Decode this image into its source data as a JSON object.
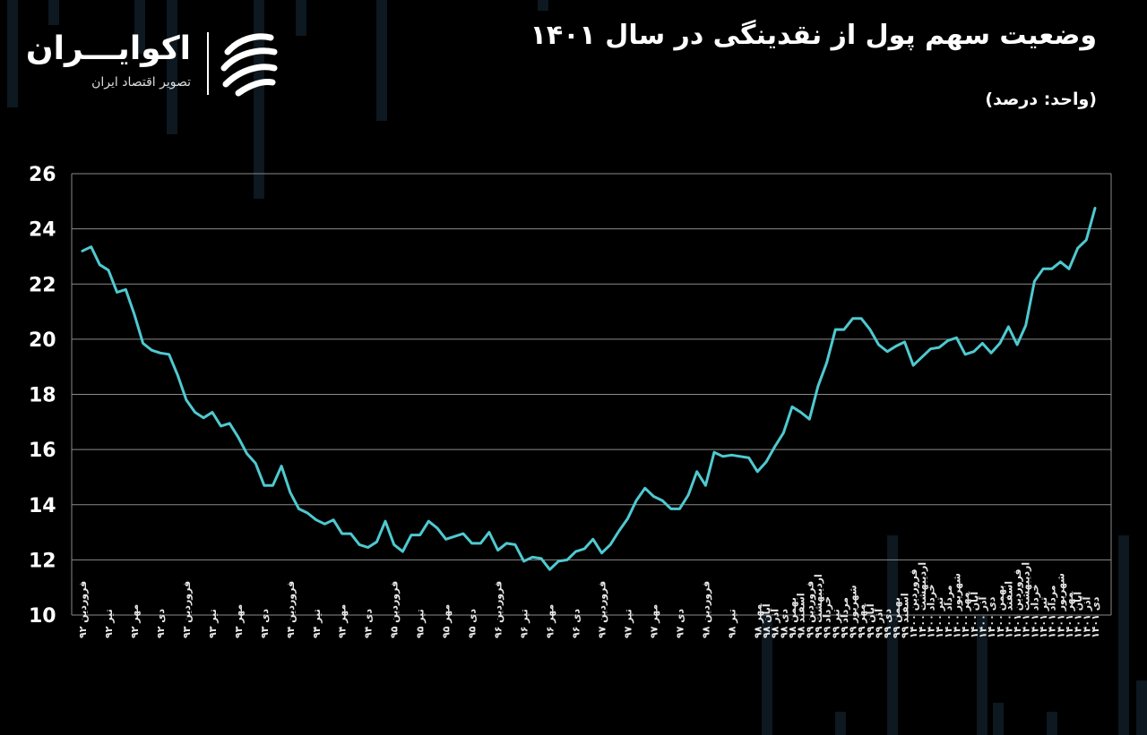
{
  "title": "وضعیت سهم پول از نقدینگی در سال ۱۴۰۱",
  "unit_label": "(واحد: درصد)",
  "brand": {
    "name": "اکوایـــران",
    "tagline": "تصویر اقتصاد ایران"
  },
  "colors": {
    "background": "#000000",
    "line": "#4fc9d0",
    "grid": "#8a8a8a",
    "text": "#ffffff",
    "bg_bars": "#0d1820"
  },
  "chart_data": {
    "type": "line",
    "title": "وضعیت سهم پول از نقدینگی در سال ۱۴۰۱",
    "xlabel": "",
    "ylabel": "(واحد: درصد)",
    "ylim": [
      10,
      26
    ],
    "yticks": [
      10,
      12,
      14,
      16,
      18,
      20,
      22,
      24,
      26
    ],
    "ytick_labels": [
      "10",
      "12",
      "14",
      "16",
      "18",
      "20",
      "22",
      "24",
      "26"
    ],
    "grid": true,
    "x_labels": [
      "فروردین ۹۲",
      "تیر ۹۲",
      "مهر ۹۲",
      "دی ۹۲",
      "فروردین ۹۳",
      "تیر ۹۳",
      "مهر ۹۳",
      "دی ۹۳",
      "فروردین ۹۴",
      "تیر ۹۴",
      "مهر ۹۴",
      "دی ۹۴",
      "فروردین ۹۵",
      "تیر ۹۵",
      "مهر ۹۵",
      "دی ۹۵",
      "فروردین ۹۶",
      "تیر ۹۶",
      "مهر ۹۶",
      "دی ۹۶",
      "فروردین ۹۷",
      "تیر ۹۷",
      "مهر ۹۷",
      "دی ۹۷",
      "فروردین ۹۸",
      "تیر ۹۸",
      "مهر ۹۸",
      "آبان ۹۸",
      "آذر ۹۸",
      "دی ۹۸",
      "بهمن ۹۸",
      "اسفند ۹۸",
      "فروردین ۹۹",
      "اردیبهشت ۹۹",
      "خرداد ۹۹",
      "تیر ۹۹",
      "مرداد ۹۹",
      "شهریور ۹۹",
      "مهر ۹۹",
      "آبان ۹۹",
      "آذر ۹۹",
      "دی ۹۹",
      "بهمن ۹۹",
      "اسفند ۹۹",
      "فروردین ۱۴۰۰",
      "اردیبهشت ۱۴۰۰",
      "خرداد ۱۴۰۰",
      "تیر ۱۴۰۰",
      "مرداد ۱۴۰۰",
      "شهریور ۱۴۰۰",
      "مهر ۱۴۰۰",
      "آبان ۱۴۰۰",
      "آذر ۱۴۰۰",
      "دی ۱۴۰۰",
      "بهمن ۱۴۰۰",
      "اسفند ۱۴۰۰",
      "فروردین ۱۴۰۱",
      "اردیبهشت ۱۴۰۱",
      "خرداد ۱۴۰۱",
      "تیر ۱۴۰۱",
      "مرداد ۱۴۰۱",
      "شهریور ۱۴۰۱",
      "مهر ۱۴۰۱",
      "آبان ۱۴۰۱",
      "آذر ۱۴۰۱",
      "دی ۱۴۰۱"
    ],
    "label_positions": [
      0,
      3,
      6,
      9,
      12,
      15,
      18,
      21,
      24,
      27,
      30,
      33,
      36,
      39,
      42,
      45,
      48,
      51,
      54,
      57,
      60,
      63,
      66,
      69,
      72,
      75,
      78,
      79,
      80,
      81,
      82,
      83,
      84,
      85,
      86,
      87,
      88,
      89,
      90,
      91,
      92,
      93,
      94,
      95,
      96,
      97,
      98,
      99,
      100,
      101,
      102,
      103,
      104,
      105,
      106,
      107,
      108,
      109,
      110,
      111,
      112,
      113,
      114,
      115,
      116,
      117
    ],
    "series": [
      {
        "values": [
          23.2,
          23.35,
          22.7,
          22.5,
          21.7,
          21.8,
          20.9,
          19.85,
          19.6,
          19.5,
          19.45,
          18.7,
          17.8,
          17.35,
          17.15,
          17.35,
          16.85,
          16.95,
          16.45,
          15.85,
          15.5,
          14.7,
          14.7,
          15.4,
          14.45,
          13.85,
          13.7,
          13.45,
          13.3,
          13.45,
          12.95,
          12.95,
          12.55,
          12.45,
          12.65,
          13.4,
          12.55,
          12.3,
          12.9,
          12.9,
          13.4,
          13.15,
          12.75,
          12.85,
          12.95,
          12.6,
          12.6,
          13.0,
          12.35,
          12.6,
          12.55,
          11.95,
          12.1,
          12.05,
          11.65,
          11.95,
          12.0,
          12.3,
          12.4,
          12.75,
          12.25,
          12.55,
          13.05,
          13.5,
          14.15,
          14.6,
          14.3,
          14.15,
          13.85,
          13.85,
          14.35,
          15.2,
          14.7,
          15.9,
          15.75,
          15.8,
          15.75,
          15.7,
          15.2,
          15.55,
          16.1,
          16.6,
          17.55,
          17.35,
          17.1,
          18.3,
          19.15,
          20.35,
          20.35,
          20.75,
          20.75,
          20.35,
          19.8,
          19.55,
          19.75,
          19.9,
          19.05,
          19.35,
          19.65,
          19.7,
          19.95,
          20.05,
          19.45,
          19.55,
          19.85,
          19.5,
          19.85,
          20.45,
          19.8,
          20.5,
          22.1,
          22.55,
          22.55,
          22.8,
          22.55,
          23.3,
          23.6,
          24.75
        ]
      }
    ]
  }
}
